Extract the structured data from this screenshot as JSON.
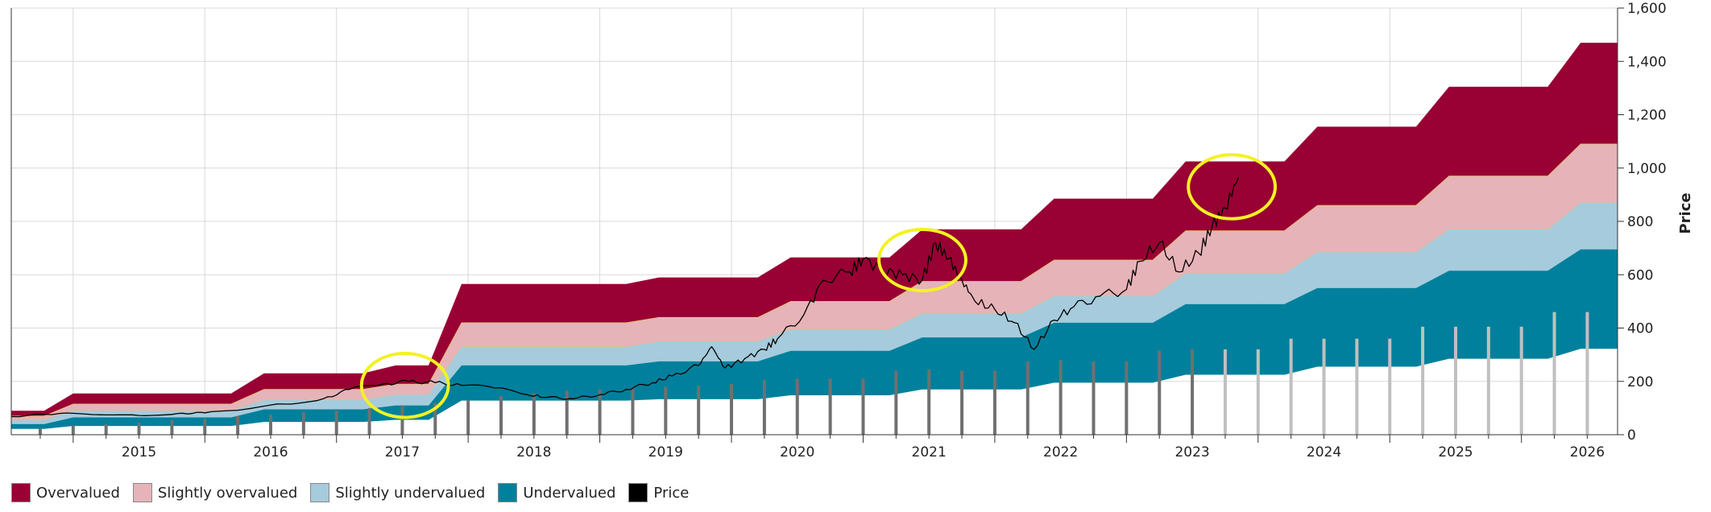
{
  "chart_data": {
    "type": "area",
    "title": "",
    "xlabel": "",
    "ylabel": "Price",
    "x_ticks": [
      "2015",
      "2016",
      "2017",
      "2018",
      "2019",
      "2020",
      "2021",
      "2022",
      "2023",
      "2024",
      "2025",
      "2026"
    ],
    "y_ticks": [
      "0",
      "200",
      "400",
      "600",
      "800",
      "1,000",
      "1,200",
      "1,400",
      "1,600"
    ],
    "xlim": [
      2014.53,
      2026.73
    ],
    "ylim": [
      0,
      1600
    ],
    "grid": true,
    "legend_position": "bottom-left",
    "colors": {
      "overvalued": "#990033",
      "slightly_overvalued": "#e6b3b8",
      "slightly_undervalued": "#a6cbdc",
      "undervalued": "#00809c",
      "price": "#000000",
      "bars_historic": "#707070",
      "bars_forecast": "#c0c0c0",
      "highlight": "#f2f224"
    },
    "series": [
      {
        "name": "Overvalued",
        "x": [
          2014.53,
          2014.78,
          2015.0,
          2016.2,
          2016.45,
          2017.2,
          2017.45,
          2017.7,
          2017.95,
          2019.2,
          2019.45,
          2020.2,
          2020.45,
          2021.2,
          2021.45,
          2022.2,
          2022.45,
          2023.2,
          2023.45,
          2024.2,
          2024.45,
          2025.2,
          2025.45,
          2026.2,
          2026.45,
          2026.73
        ],
        "values": [
          90,
          90,
          155,
          155,
          230,
          230,
          260,
          260,
          565,
          565,
          590,
          590,
          665,
          665,
          770,
          770,
          885,
          885,
          1025,
          1025,
          1155,
          1155,
          1305,
          1305,
          1470,
          1470
        ]
      },
      {
        "name": "Slightly overvalued",
        "x": [
          2014.53,
          2014.78,
          2015.0,
          2016.2,
          2016.45,
          2017.2,
          2017.45,
          2017.7,
          2017.95,
          2019.2,
          2019.45,
          2020.2,
          2020.45,
          2021.2,
          2021.45,
          2022.2,
          2022.45,
          2023.2,
          2023.45,
          2024.2,
          2024.45,
          2025.2,
          2025.45,
          2026.2,
          2026.45,
          2026.73
        ],
        "values": [
          70,
          70,
          115,
          115,
          170,
          170,
          190,
          190,
          420,
          420,
          440,
          440,
          500,
          500,
          575,
          575,
          655,
          655,
          765,
          765,
          860,
          860,
          970,
          970,
          1090,
          1090
        ]
      },
      {
        "name": "Slightly undervalued",
        "x": [
          2014.53,
          2014.78,
          2015.0,
          2016.2,
          2016.45,
          2017.2,
          2017.45,
          2017.7,
          2017.95,
          2019.2,
          2019.45,
          2020.2,
          2020.45,
          2021.2,
          2021.45,
          2022.2,
          2022.45,
          2023.2,
          2023.45,
          2024.2,
          2024.45,
          2025.2,
          2025.45,
          2026.2,
          2026.45,
          2026.73
        ],
        "values": [
          55,
          55,
          90,
          90,
          130,
          130,
          150,
          150,
          330,
          330,
          350,
          350,
          395,
          395,
          455,
          455,
          520,
          520,
          605,
          605,
          685,
          685,
          770,
          770,
          870,
          870
        ]
      },
      {
        "name": "Undervalued",
        "x": [
          2014.53,
          2014.78,
          2015.0,
          2016.2,
          2016.45,
          2017.2,
          2017.45,
          2017.7,
          2017.95,
          2019.2,
          2019.45,
          2020.2,
          2020.45,
          2021.2,
          2021.45,
          2022.2,
          2022.45,
          2023.2,
          2023.45,
          2024.2,
          2024.45,
          2025.2,
          2025.45,
          2026.2,
          2026.45,
          2026.73
        ],
        "values": [
          40,
          40,
          65,
          65,
          95,
          95,
          110,
          110,
          260,
          260,
          275,
          275,
          315,
          315,
          365,
          365,
          420,
          420,
          490,
          490,
          550,
          550,
          615,
          615,
          695,
          695
        ]
      },
      {
        "name": "Undervalued lower bound",
        "x": [
          2014.53,
          2014.78,
          2015.0,
          2016.2,
          2016.45,
          2017.2,
          2017.45,
          2017.7,
          2017.95,
          2019.2,
          2019.45,
          2020.2,
          2020.45,
          2021.2,
          2021.45,
          2022.2,
          2022.45,
          2023.2,
          2023.45,
          2024.2,
          2024.45,
          2025.2,
          2025.45,
          2026.2,
          2026.45,
          2026.73
        ],
        "values": [
          22,
          22,
          33,
          33,
          48,
          48,
          56,
          56,
          128,
          128,
          133,
          133,
          148,
          148,
          170,
          170,
          195,
          195,
          225,
          225,
          255,
          255,
          285,
          285,
          322,
          322
        ]
      },
      {
        "name": "Price",
        "x": [
          2014.53,
          2014.9,
          2015.2,
          2015.5,
          2015.8,
          2016.0,
          2016.3,
          2016.6,
          2016.9,
          2017.1,
          2017.35,
          2017.55,
          2017.75,
          2017.95,
          2018.2,
          2018.45,
          2018.6,
          2018.8,
          2019.0,
          2019.2,
          2019.4,
          2019.55,
          2019.75,
          2019.85,
          2019.95,
          2020.1,
          2020.25,
          2020.35,
          2020.55,
          2020.7,
          2020.9,
          2021.0,
          2021.15,
          2021.3,
          2021.45,
          2021.55,
          2021.65,
          2021.75,
          2021.85,
          2022.0,
          2022.15,
          2022.3,
          2022.45,
          2022.6,
          2022.8,
          2023.0,
          2023.1,
          2023.25,
          2023.4,
          2023.55,
          2023.65,
          2023.75,
          2023.85
        ],
        "values": [
          68,
          80,
          75,
          72,
          80,
          82,
          95,
          115,
          135,
          170,
          190,
          200,
          195,
          185,
          175,
          150,
          140,
          135,
          150,
          170,
          195,
          220,
          260,
          330,
          250,
          285,
          320,
          360,
          450,
          580,
          610,
          660,
          615,
          600,
          580,
          720,
          660,
          580,
          500,
          470,
          420,
          320,
          430,
          480,
          520,
          545,
          650,
          720,
          610,
          680,
          780,
          850,
          965
        ]
      },
      {
        "name": "Bars",
        "x": [
          2014.75,
          2015.0,
          2015.25,
          2015.5,
          2015.75,
          2016.0,
          2016.25,
          2016.5,
          2016.75,
          2017.0,
          2017.25,
          2017.5,
          2017.75,
          2018.0,
          2018.25,
          2018.5,
          2018.75,
          2019.0,
          2019.25,
          2019.5,
          2019.75,
          2020.0,
          2020.25,
          2020.5,
          2020.75,
          2021.0,
          2021.25,
          2021.5,
          2021.75,
          2022.0,
          2022.25,
          2022.5,
          2022.75,
          2023.0,
          2023.25,
          2023.5,
          2023.75,
          2024.0,
          2024.25,
          2024.5,
          2024.75,
          2025.0,
          2025.25,
          2025.5,
          2025.75,
          2026.0,
          2026.25,
          2026.5
        ],
        "values": [
          25,
          35,
          40,
          45,
          55,
          60,
          70,
          75,
          85,
          90,
          100,
          110,
          120,
          130,
          145,
          155,
          165,
          170,
          175,
          180,
          185,
          190,
          205,
          210,
          210,
          210,
          240,
          245,
          240,
          240,
          275,
          280,
          275,
          275,
          315,
          320,
          320,
          320,
          360,
          360,
          360,
          360,
          405,
          405,
          405,
          405,
          460,
          460
        ],
        "forecast_from": 2023.55
      }
    ],
    "annotations": [
      {
        "type": "ellipse",
        "x": 2017.52,
        "y": 185,
        "rx_years": 0.33,
        "ry_value": 120
      },
      {
        "type": "ellipse",
        "x": 2021.45,
        "y": 655,
        "rx_years": 0.33,
        "ry_value": 115
      },
      {
        "type": "ellipse",
        "x": 2023.8,
        "y": 930,
        "rx_years": 0.33,
        "ry_value": 120
      }
    ]
  },
  "legend": {
    "items": [
      {
        "label": "Overvalued",
        "color": "#990033"
      },
      {
        "label": "Slightly overvalued",
        "color": "#e6b3b8"
      },
      {
        "label": "Slightly undervalued",
        "color": "#a6cbdc"
      },
      {
        "label": "Undervalued",
        "color": "#00809c"
      },
      {
        "label": "Price",
        "color": "#000000"
      }
    ]
  }
}
